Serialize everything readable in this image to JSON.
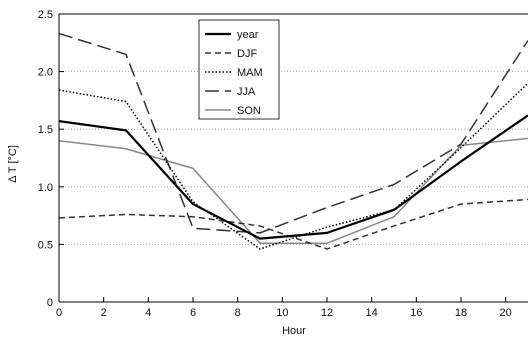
{
  "chart_data": {
    "type": "line",
    "xlabel": "Hour",
    "ylabel": "Δ T [°C]",
    "xlim": [
      0,
      21
    ],
    "ylim": [
      0,
      2.5
    ],
    "xticks": [
      "0",
      "2",
      "4",
      "6",
      "8",
      "10",
      "12",
      "14",
      "16",
      "18",
      "20"
    ],
    "yticks": [
      "0",
      "0.5",
      "1.0",
      "1.5",
      "2.0",
      "2.5"
    ],
    "grid": "horizontal-dotted",
    "legend_position": "top-center",
    "series": [
      {
        "name": "year",
        "x": [
          0,
          3,
          6,
          9,
          12,
          15,
          18,
          21
        ],
        "values": [
          1.57,
          1.49,
          0.85,
          0.55,
          0.6,
          0.8,
          1.22,
          1.62
        ],
        "color": "#000000",
        "style": "solid",
        "width": "thick"
      },
      {
        "name": "DJF",
        "x": [
          0,
          3,
          6,
          9,
          12,
          15,
          18,
          21
        ],
        "values": [
          0.73,
          0.76,
          0.74,
          0.66,
          0.46,
          0.66,
          0.85,
          0.89
        ],
        "color": "#333333",
        "style": "dashed",
        "width": "normal"
      },
      {
        "name": "MAM",
        "x": [
          0,
          3,
          6,
          9,
          12,
          15,
          18,
          21
        ],
        "values": [
          1.84,
          1.74,
          0.87,
          0.46,
          0.65,
          0.8,
          1.34,
          1.9
        ],
        "color": "#000000",
        "style": "dotted",
        "width": "normal"
      },
      {
        "name": "JJA",
        "x": [
          0,
          3,
          6,
          9,
          12,
          15,
          18,
          21
        ],
        "values": [
          2.33,
          2.15,
          0.64,
          0.6,
          0.82,
          1.02,
          1.37,
          2.27
        ],
        "color": "#333333",
        "style": "long-dashed",
        "width": "normal"
      },
      {
        "name": "SON",
        "x": [
          0,
          3,
          6,
          9,
          12,
          15,
          18,
          21
        ],
        "values": [
          1.4,
          1.33,
          1.16,
          0.51,
          0.51,
          0.74,
          1.36,
          1.42
        ],
        "color": "#888888",
        "style": "solid",
        "width": "normal"
      }
    ]
  }
}
